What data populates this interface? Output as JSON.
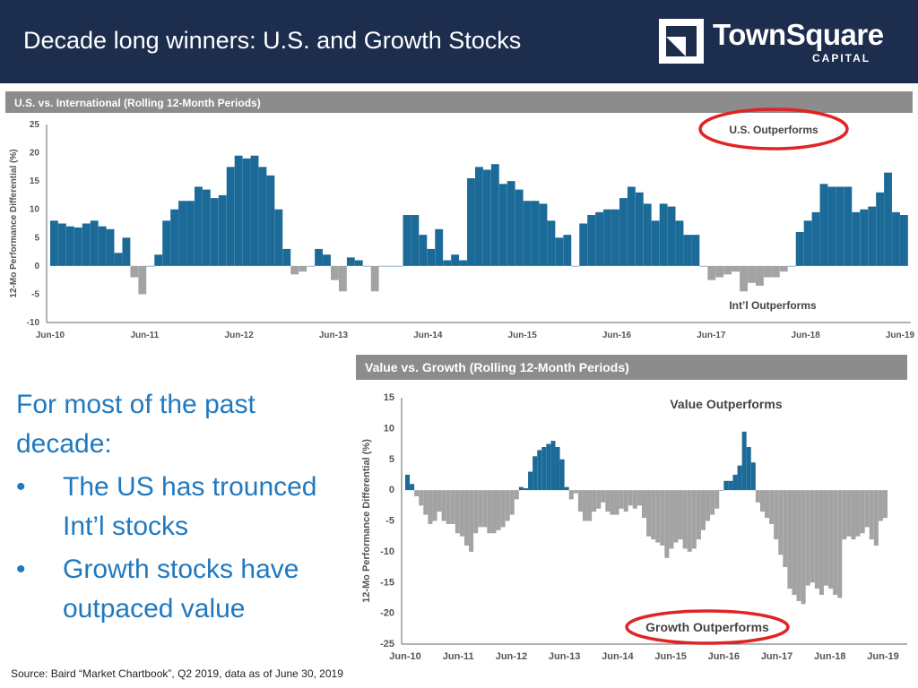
{
  "page": {
    "title": "Decade long winners: U.S. and Growth Stocks",
    "source": "Source: Baird “Market Chartbook”, Q2 2019, data as of June 30, 2019"
  },
  "logo": {
    "name": "TownSquare",
    "sub": "CAPITAL"
  },
  "bullets": {
    "intro": "For most of the past decade:",
    "items": [
      "The US has trounced Int’l stocks",
      "Growth stocks have outpaced value"
    ],
    "bullet_glyph": "•"
  },
  "colors": {
    "header_bg": "#1d2d4e",
    "positive": "#1b6a98",
    "negative": "#a3a3a3",
    "highlight": "#e02424",
    "text_accent": "#2079bf",
    "title_bar": "#8c8c8c"
  },
  "chart_data": [
    {
      "type": "bar",
      "title": "U.S. vs. International (Rolling 12-Month Periods)",
      "ylabel": "12-Mo Performance Differential (%)",
      "ylim": [
        -10,
        25
      ],
      "yticks": [
        25,
        20,
        15,
        10,
        5,
        0,
        -5,
        -10
      ],
      "xtick_labels": [
        "Jun-10",
        "Jun-11",
        "Jun-12",
        "Jun-13",
        "Jun-14",
        "Jun-15",
        "Jun-16",
        "Jun-17",
        "Jun-18",
        "Jun-19"
      ],
      "grid": false,
      "annotations": [
        {
          "text": "U.S. Outperforms",
          "circled": true
        },
        {
          "text": "Int’l Outperforms",
          "circled": false
        }
      ],
      "values": [
        8,
        7.5,
        7,
        6.8,
        7.5,
        8,
        7,
        6.5,
        2.3,
        5,
        -2,
        -5,
        0,
        2,
        8,
        10,
        11.5,
        11.5,
        14,
        13.5,
        12,
        12.5,
        17.5,
        19.5,
        19,
        19.5,
        17.5,
        16,
        10,
        3,
        -1.5,
        -1,
        0,
        3,
        2,
        -2.5,
        -4.5,
        1.5,
        1,
        0,
        -4.5,
        0,
        0,
        0,
        9,
        9,
        5.5,
        3,
        6.5,
        1,
        2,
        1,
        15.5,
        17.5,
        17,
        18,
        14.5,
        15,
        13.5,
        11.5,
        11.5,
        11,
        8,
        5,
        5.5,
        0,
        7.5,
        9,
        9.5,
        10,
        10,
        12,
        14,
        13,
        11,
        8,
        11,
        10.5,
        8,
        5.5,
        5.5,
        0,
        -2.5,
        -2,
        -1.5,
        -1,
        -4.5,
        -3,
        -3.5,
        -2,
        -2,
        -1,
        0,
        6,
        8,
        9.5,
        14.5,
        14,
        14,
        14,
        9.5,
        10,
        10.5,
        13,
        16.5,
        9.5,
        9
      ]
    },
    {
      "type": "bar",
      "title": "Value vs. Growth (Rolling 12-Month Periods)",
      "ylabel": "12-Mo Performance Differential (%)",
      "ylim": [
        -25,
        15
      ],
      "yticks": [
        15,
        10,
        5,
        0,
        -5,
        -10,
        -15,
        -20,
        -25
      ],
      "xtick_labels": [
        "Jun-10",
        "Jun-11",
        "Jun-12",
        "Jun-13",
        "Jun-14",
        "Jun-15",
        "Jun-16",
        "Jun-17",
        "Jun-18",
        "Jun-19"
      ],
      "grid": false,
      "annotations": [
        {
          "text": "Value Outperforms",
          "circled": false
        },
        {
          "text": "Growth Outperforms",
          "circled": true
        }
      ],
      "values": [
        2.5,
        1,
        -1,
        -2.5,
        -4,
        -5.5,
        -5,
        -3.5,
        -5,
        -5.5,
        -5.5,
        -7,
        -7.5,
        -9,
        -10,
        -7,
        -6,
        -6,
        -7,
        -7,
        -6.5,
        -6,
        -5,
        -4,
        -1.5,
        0.5,
        0.3,
        3,
        5.5,
        6.5,
        7,
        7.5,
        8,
        7,
        5,
        0.5,
        -1.5,
        -0.5,
        -3.5,
        -5,
        -5,
        -3.5,
        -3,
        -2,
        -3.5,
        -4,
        -4,
        -3,
        -3.5,
        -2.5,
        -3,
        -2.5,
        -4.5,
        -7.5,
        -8,
        -8.5,
        -9,
        -11,
        -9.5,
        -8.5,
        -8,
        -9.5,
        -10,
        -9.5,
        -8,
        -6.5,
        -5,
        -4,
        -3,
        0,
        1.5,
        1.5,
        2.5,
        4,
        9.5,
        7,
        4.5,
        -2,
        -3.5,
        -4.5,
        -5.5,
        -8,
        -10.5,
        -12.5,
        -16,
        -17,
        -18,
        -18.5,
        -15.5,
        -15,
        -16,
        -17,
        -15.5,
        -16,
        -17,
        -17.5,
        -8,
        -7.5,
        -8,
        -7.5,
        -7,
        -6,
        -8,
        -9,
        -5,
        -4.5
      ]
    }
  ]
}
